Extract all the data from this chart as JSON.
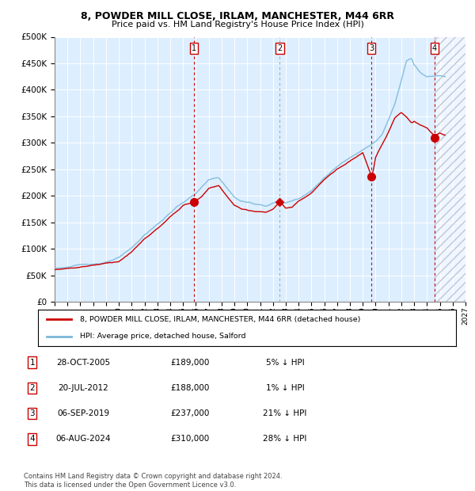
{
  "title1": "8, POWDER MILL CLOSE, IRLAM, MANCHESTER, M44 6RR",
  "title2": "Price paid vs. HM Land Registry's House Price Index (HPI)",
  "legend_label1": "8, POWDER MILL CLOSE, IRLAM, MANCHESTER, M44 6RR (detached house)",
  "legend_label2": "HPI: Average price, detached house, Salford",
  "sale_label1": "28-OCT-2005",
  "sale_price1": 189000,
  "sale_hpi1": "5% ↓ HPI",
  "sale_label2": "20-JUL-2012",
  "sale_price2": 188000,
  "sale_hpi2": "1% ↓ HPI",
  "sale_label3": "06-SEP-2019",
  "sale_price3": 237000,
  "sale_hpi3": "21% ↓ HPI",
  "sale_label4": "06-AUG-2024",
  "sale_price4": 310000,
  "sale_hpi4": "28% ↓ HPI",
  "footer": "Contains HM Land Registry data © Crown copyright and database right 2024.\nThis data is licensed under the Open Government Licence v3.0.",
  "hpi_color": "#7ab8d9",
  "price_color": "#cc0000",
  "bg_color": "#ddeeff",
  "ylim_max": 500000,
  "ylim_min": 0,
  "x_start_year": 1995,
  "x_end_year": 2027,
  "sale1_x": 2005.83,
  "sale2_x": 2012.54,
  "sale3_x": 2019.67,
  "sale4_x": 2024.58
}
